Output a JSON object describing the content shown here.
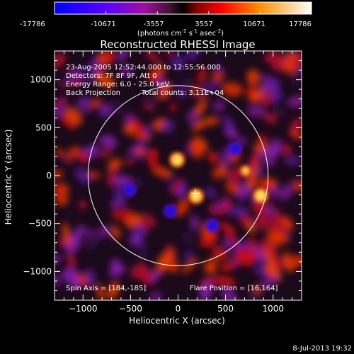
{
  "colorbar": {
    "ticks": [
      "-17786",
      "-10671",
      "-3557",
      "3557",
      "10671",
      "17786"
    ],
    "tick_values": [
      -17786,
      -10671,
      -3557,
      3557,
      10671,
      17786
    ],
    "range": [
      -17786,
      17786
    ],
    "unit_base": "(photons cm",
    "unit_exp1": "-2",
    "unit_mid": " s",
    "unit_exp2": "-1",
    "unit_mid2": " asec",
    "unit_exp3": "-2",
    "unit_end": ")"
  },
  "title": "Reconstructed RHESSI Image",
  "annotations": {
    "time": "23-Aug-2005 12:52:44.000 to 12:55:56.000",
    "detectors": "Detectors: 7F 8F 9F, Att 0",
    "energy": "Energy Range: 6.0 - 25.0 keV",
    "method": "Back Projection",
    "counts": "Total counts: 3.11E+04",
    "spin_axis": "Spin Axis = [184,-185]",
    "flare_position": "Flare Position = [16,164]",
    "footer_date": "8-Jul-2013 19:32"
  },
  "chart_data": {
    "type": "heatmap",
    "title": "Reconstructed RHESSI Image",
    "xlabel": "Heliocentric X (arcsec)",
    "ylabel": "Heliocentric Y (arcsec)",
    "xlim": [
      -1300,
      1300
    ],
    "ylim": [
      -1300,
      1300
    ],
    "x_ticks": [
      -1000,
      -500,
      0,
      500,
      1000
    ],
    "y_ticks": [
      -1000,
      -500,
      0,
      500,
      1000
    ],
    "x_tick_labels": [
      "−1000",
      "−500",
      "0",
      "500",
      "1000"
    ],
    "y_tick_labels": [
      "−1000",
      "−500",
      "0",
      "500",
      "1000"
    ],
    "colormap": [
      "#0000ff",
      "#7f00ff",
      "#c0158f",
      "#202020",
      "#ff0000",
      "#ff9d00",
      "#ffffff"
    ],
    "solar_limb_radius_arcsec": 947,
    "flare_marker": [
      184,
      -185
    ],
    "bright_sources": [
      {
        "x": -10,
        "y": 165,
        "value": 17000
      },
      {
        "x": 190,
        "y": -215,
        "value": 14000
      },
      {
        "x": 870,
        "y": -210,
        "value": 14500
      },
      {
        "x": 710,
        "y": 50,
        "value": 8000
      }
    ],
    "dark_sources": [
      {
        "x": 360,
        "y": -520,
        "value": -17000
      },
      {
        "x": -510,
        "y": -150,
        "value": -13000
      },
      {
        "x": -80,
        "y": -370,
        "value": -10000
      },
      {
        "x": 600,
        "y": 280,
        "value": -6000
      }
    ]
  }
}
